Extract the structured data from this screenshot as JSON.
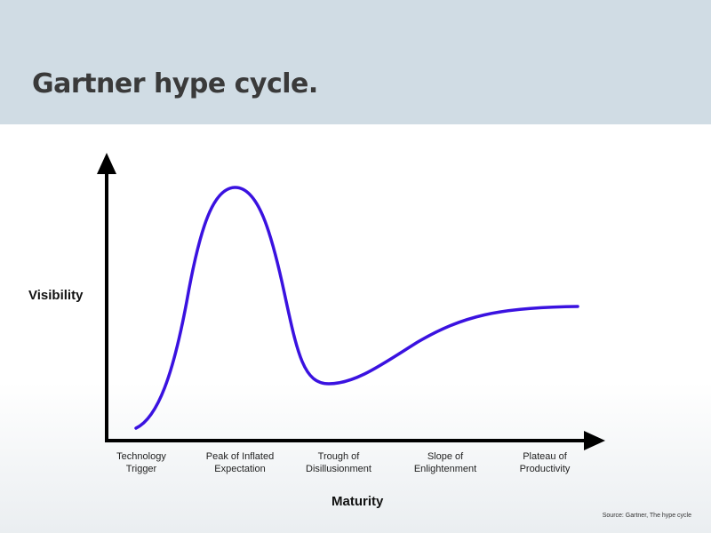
{
  "title": "Gartner hype cycle.",
  "diagram": {
    "y_axis_label": "Visibility",
    "x_axis_label": "Maturity",
    "curve_color": "#3a12e0",
    "phases": [
      {
        "line1": "Technology",
        "line2": "Trigger"
      },
      {
        "line1": "Peak of Inflated",
        "line2": "Expectation"
      },
      {
        "line1": "Trough of",
        "line2": "Disillusionment"
      },
      {
        "line1": "Slope of",
        "line2": "Enlightenment"
      },
      {
        "line1": "Plateau of",
        "line2": "Productivity"
      }
    ]
  },
  "source": "Source: Gartner, The hype cycle"
}
